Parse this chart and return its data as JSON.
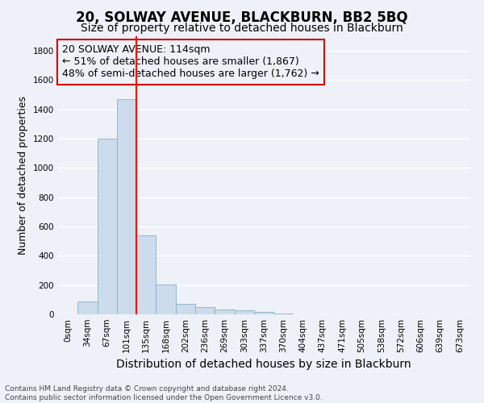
{
  "title": "20, SOLWAY AVENUE, BLACKBURN, BB2 5BQ",
  "subtitle": "Size of property relative to detached houses in Blackburn",
  "xlabel": "Distribution of detached houses by size in Blackburn",
  "ylabel": "Number of detached properties",
  "footer_line1": "Contains HM Land Registry data © Crown copyright and database right 2024.",
  "footer_line2": "Contains public sector information licensed under the Open Government Licence v3.0.",
  "categories": [
    "0sqm",
    "34sqm",
    "67sqm",
    "101sqm",
    "135sqm",
    "168sqm",
    "202sqm",
    "236sqm",
    "269sqm",
    "303sqm",
    "337sqm",
    "370sqm",
    "404sqm",
    "437sqm",
    "471sqm",
    "505sqm",
    "538sqm",
    "572sqm",
    "606sqm",
    "639sqm",
    "673sqm"
  ],
  "bar_values": [
    0,
    90,
    1200,
    1470,
    540,
    205,
    70,
    50,
    35,
    25,
    15,
    5,
    0,
    0,
    0,
    0,
    0,
    0,
    0,
    0,
    0
  ],
  "bar_color": "#ccdcec",
  "bar_edge_color": "#8aaec8",
  "ylim": [
    0,
    1900
  ],
  "yticks": [
    0,
    200,
    400,
    600,
    800,
    1000,
    1200,
    1400,
    1600,
    1800
  ],
  "red_line_x": 3.5,
  "annotation_title": "20 SOLWAY AVENUE: 114sqm",
  "annotation_line1": "← 51% of detached houses are smaller (1,867)",
  "annotation_line2": "48% of semi-detached houses are larger (1,762) →",
  "annotation_box_color": "#cc0000",
  "background_color": "#eef2f8",
  "grid_color": "#ffffff",
  "title_fontsize": 12,
  "subtitle_fontsize": 10,
  "axis_label_fontsize": 9,
  "tick_fontsize": 7.5,
  "annotation_fontsize": 9,
  "footer_fontsize": 6.5
}
